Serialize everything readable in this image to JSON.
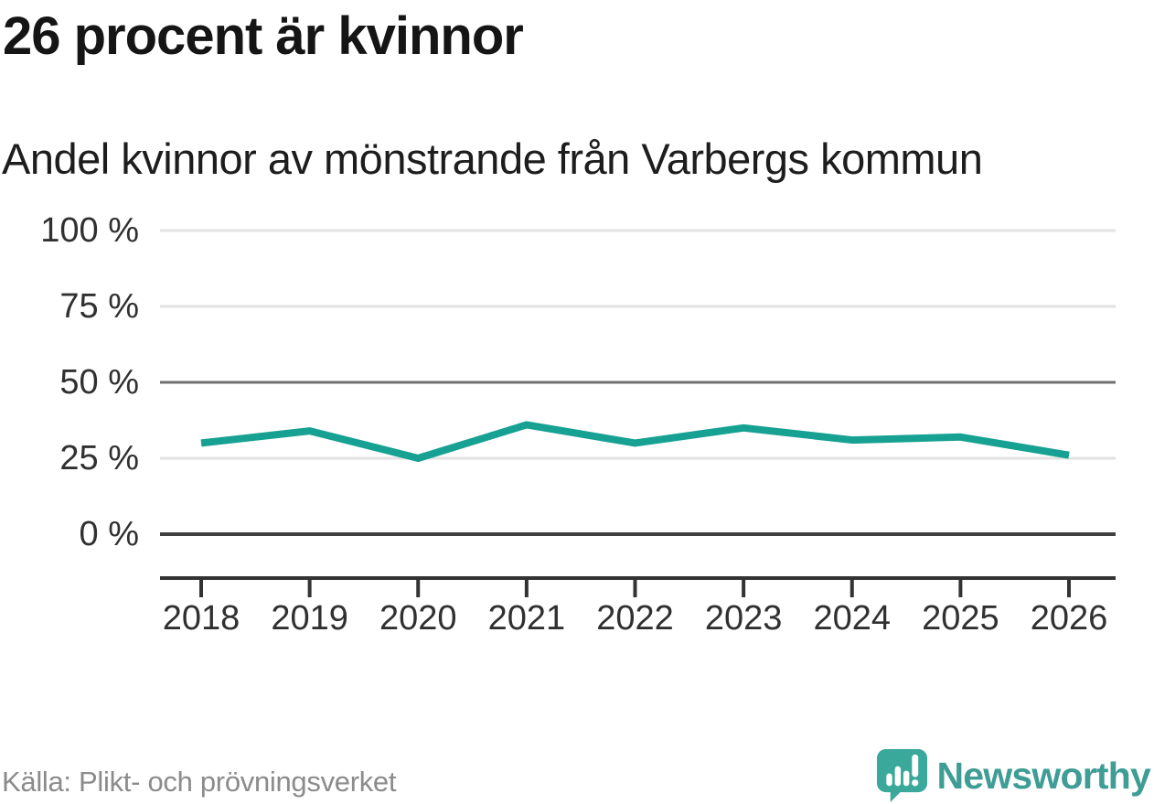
{
  "header": {
    "title": "26 procent är kvinnor",
    "subtitle": "Andel kvinnor av mönstrande från Varbergs kommun"
  },
  "footer": {
    "source": "Källa: Plikt- och prövningsverket",
    "brand": "Newsworthy"
  },
  "colors": {
    "line": "#16a192",
    "grid_light": "#e2e2e2",
    "grid_mid": "#707070",
    "zero_line": "#3f3f3f",
    "axis": "#333333",
    "brand_teal": "#3aa89a",
    "brand_text": "#3e9d95"
  },
  "chart_data": {
    "type": "line",
    "title": "26 procent är kvinnor",
    "subtitle": "Andel kvinnor av mönstrande från Varbergs kommun",
    "x": [
      2018,
      2019,
      2020,
      2021,
      2022,
      2023,
      2024,
      2025,
      2026
    ],
    "series": [
      {
        "name": "Andel kvinnor av mönstrande, Varbergs kommun",
        "values": [
          30,
          34,
          25,
          36,
          30,
          35,
          31,
          32,
          26
        ]
      }
    ],
    "unit": "%",
    "ylim": [
      0,
      100
    ],
    "yticks": [
      0,
      25,
      50,
      75,
      100
    ],
    "ytick_labels": [
      "0 %",
      "25 %",
      "50 %",
      "75 %",
      "100 %"
    ],
    "xtick_labels": [
      "2018",
      "2019",
      "2020",
      "2021",
      "2022",
      "2023",
      "2024",
      "2025",
      "2026"
    ],
    "grid": "horizontal",
    "legend": "none",
    "source_label": "Källa: Plikt- och prövningsverket"
  }
}
